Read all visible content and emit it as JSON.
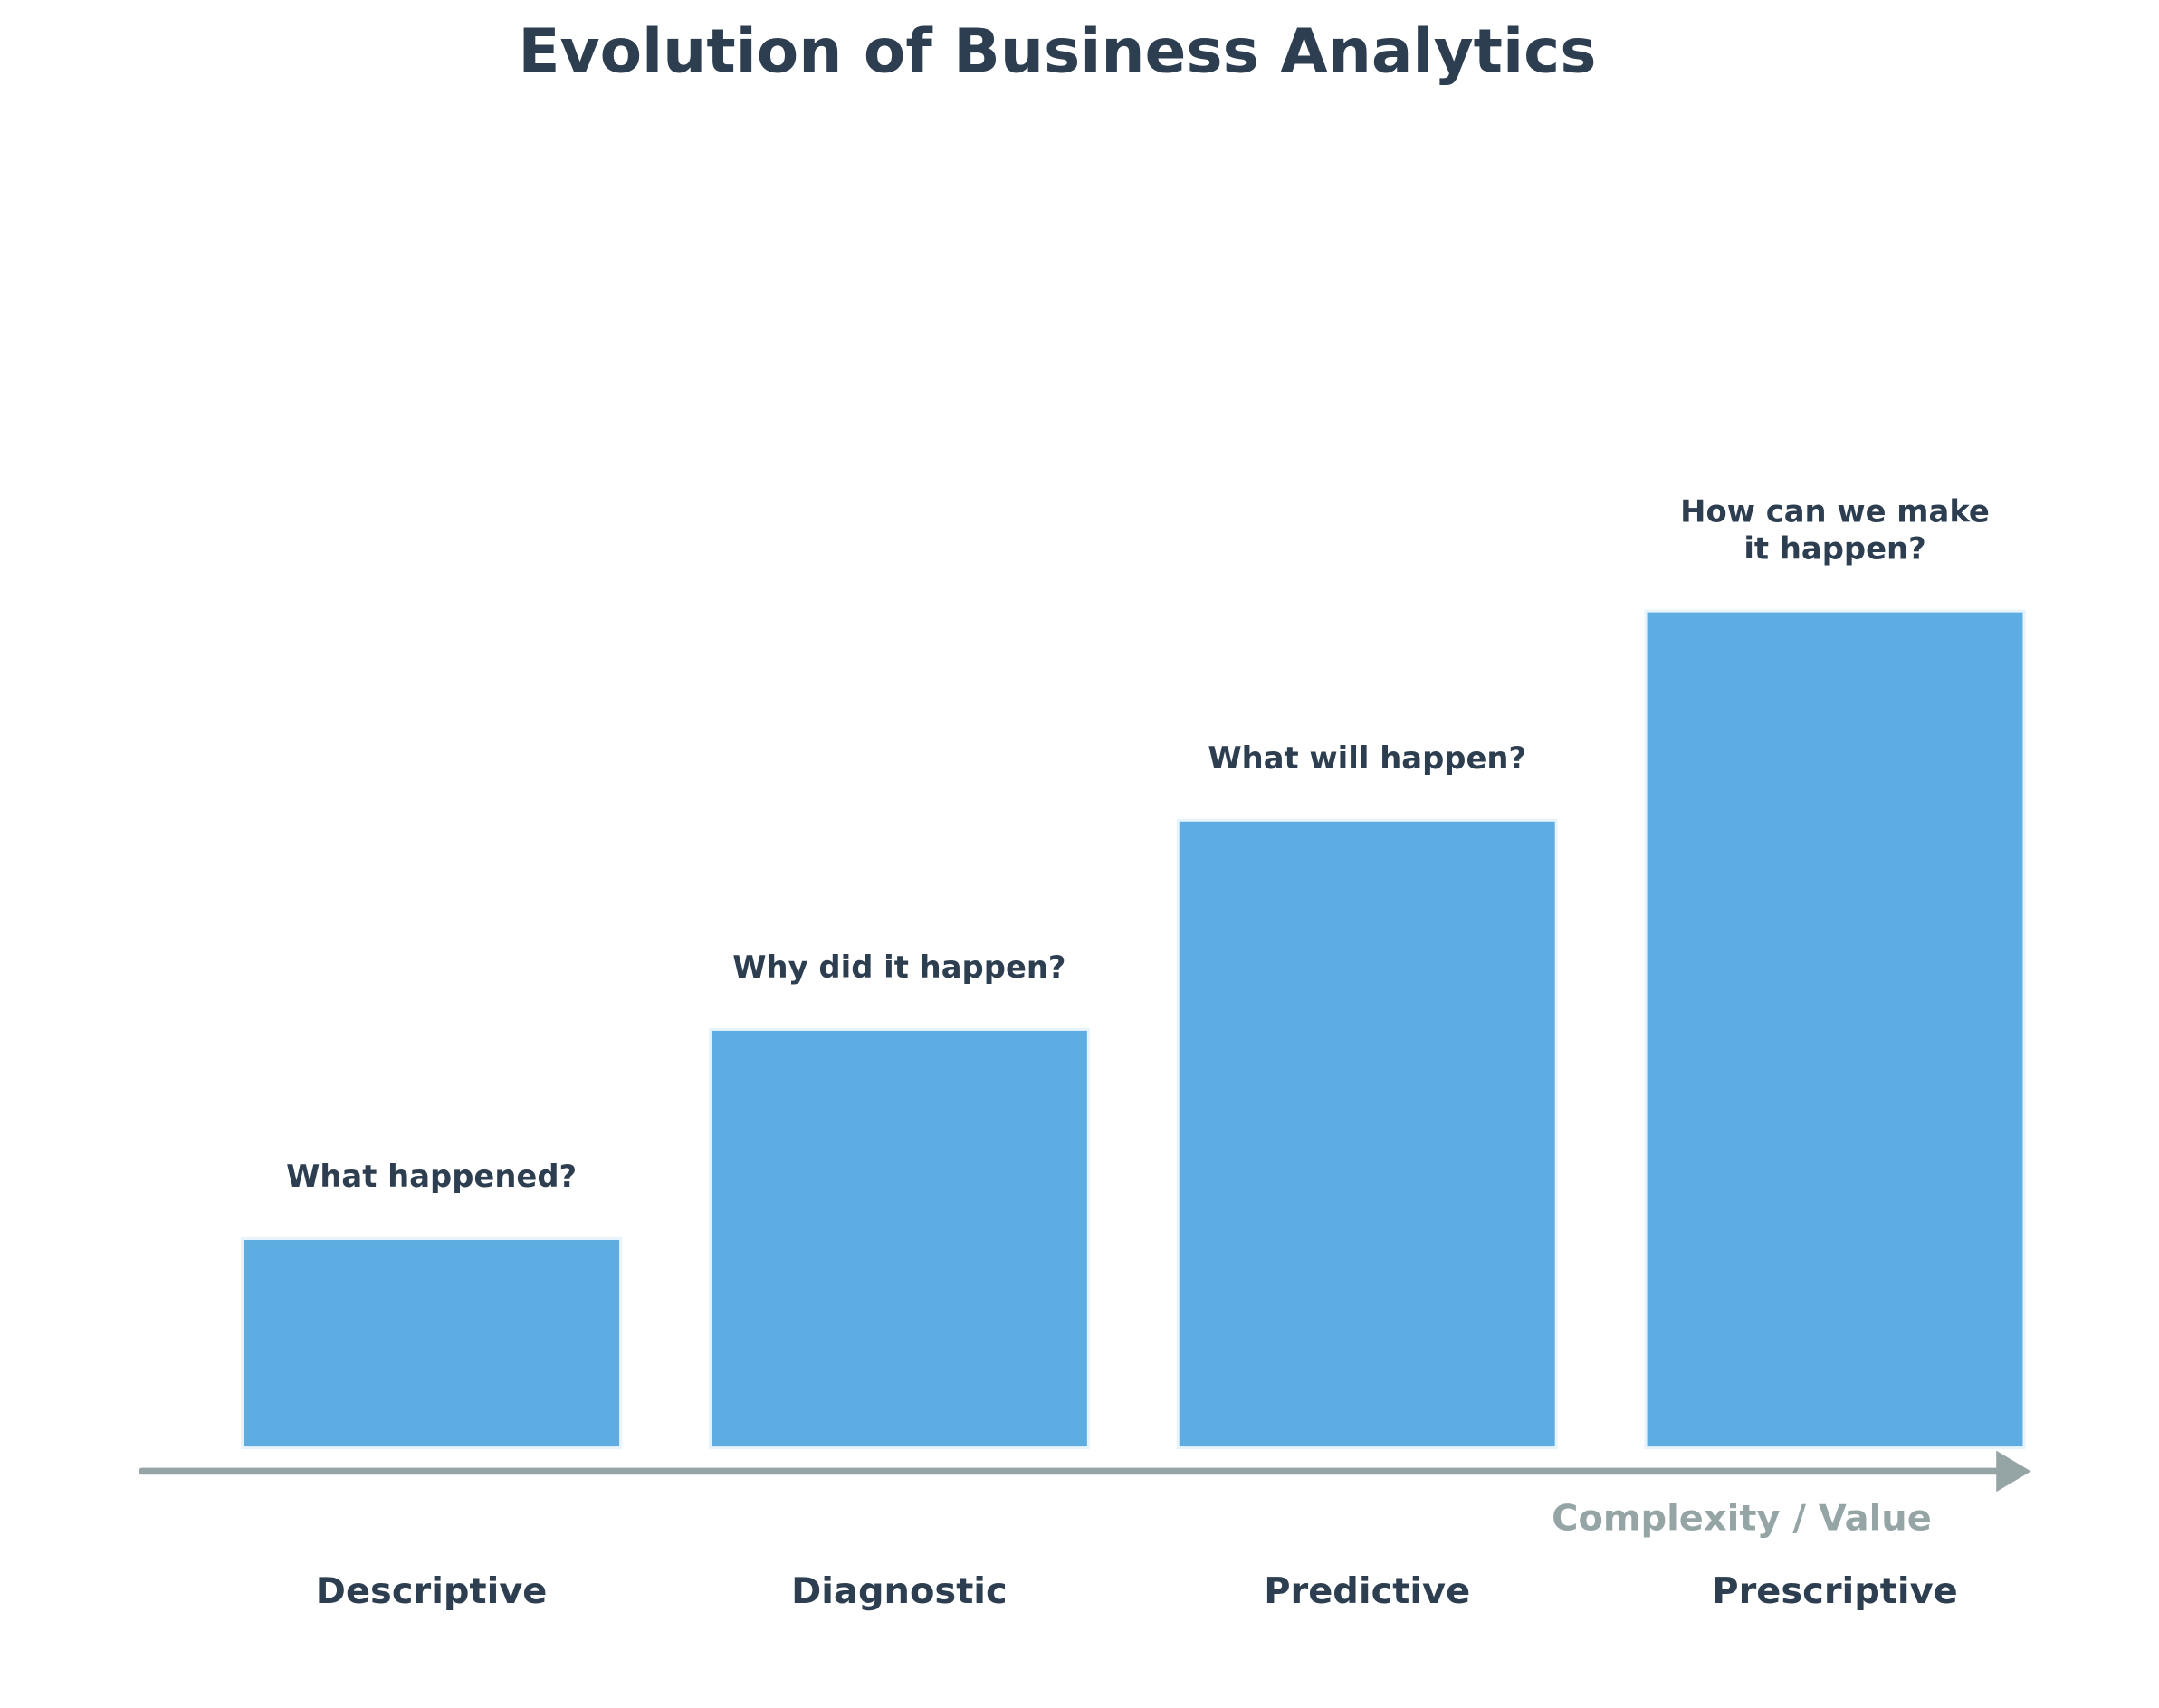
{
  "chart_data": {
    "type": "bar",
    "title": "Evolution of Business Analytics",
    "x_label": "Complexity / Value",
    "categories": [
      "Descriptive",
      "Diagnostic",
      "Predictive",
      "Prescriptive"
    ],
    "values": [
      1,
      2,
      3,
      4
    ],
    "questions": [
      [
        "What happened?"
      ],
      [
        "Why did it happen?"
      ],
      [
        "What will happen?"
      ],
      [
        "How can we make",
        "it happen?"
      ]
    ],
    "color": "#5dade2",
    "ylim": [
      0,
      5
    ]
  }
}
